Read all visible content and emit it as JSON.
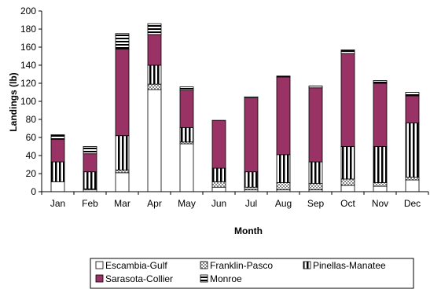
{
  "chart_data": {
    "type": "bar",
    "stacked": true,
    "xlabel": "Month",
    "ylabel": "Landings (lb)",
    "ylim": [
      0,
      200
    ],
    "yticks": [
      0,
      20,
      40,
      60,
      80,
      100,
      120,
      140,
      160,
      180,
      200
    ],
    "categories": [
      "Jan",
      "Feb",
      "Mar",
      "Apr",
      "May",
      "Jun",
      "Jul",
      "Aug",
      "Sep",
      "Oct",
      "Nov",
      "Dec"
    ],
    "legend_position": "bottom",
    "series": [
      {
        "name": "Escambia-Gulf",
        "pattern": "white",
        "color": "#ffffff",
        "values": [
          11,
          2,
          21,
          113,
          53,
          5,
          2,
          2,
          2,
          7,
          6,
          13
        ]
      },
      {
        "name": "Franklin-Pasco",
        "pattern": "check",
        "color": "#b0b0b0",
        "values": [
          0,
          1,
          3,
          6,
          2,
          6,
          3,
          8,
          7,
          7,
          4,
          3
        ]
      },
      {
        "name": "Pinellas-Manatee",
        "pattern": "vstripe",
        "color": "#000000",
        "values": [
          22,
          19,
          38,
          21,
          16,
          15,
          17,
          31,
          24,
          36,
          40,
          60
        ]
      },
      {
        "name": "Sarasota-Collier",
        "pattern": "solid",
        "color": "#993366",
        "values": [
          25,
          20,
          96,
          34,
          41,
          53,
          82,
          86,
          82,
          103,
          70,
          30
        ]
      },
      {
        "name": "Monroe",
        "pattern": "hstripe",
        "color": "#000000",
        "values": [
          5,
          8,
          17,
          12,
          4,
          0,
          1,
          1,
          2,
          4,
          3,
          4
        ]
      }
    ]
  }
}
